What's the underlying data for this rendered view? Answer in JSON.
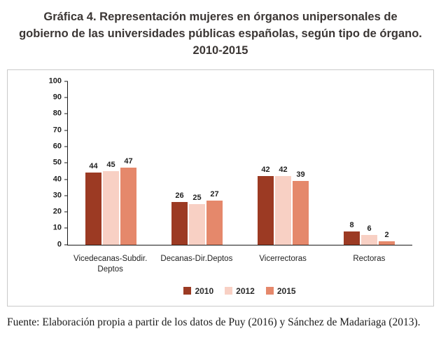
{
  "title": "Gráfica 4. Representación mujeres en órganos unipersonales de gobierno de las universidades públicas españolas, según tipo de órgano. 2010-2015",
  "source": "Fuente: Elaboración propia a partir de los datos de Puy (2016) y Sánchez de Madariaga (2013).",
  "chart_data": {
    "type": "bar",
    "title": "Gráfica 4. Representación mujeres en órganos unipersonales de gobierno de las universidades públicas españolas, según tipo de órgano. 2010-2015",
    "categories": [
      "Vicedecanas-Subdir. Deptos",
      "Decanas-Dir.Deptos",
      "Vicerrectoras",
      "Rectoras"
    ],
    "series": [
      {
        "name": "2010",
        "color": "#9c3a23",
        "values": [
          44,
          26,
          42,
          8
        ]
      },
      {
        "name": "2012",
        "color": "#f8d0c4",
        "values": [
          45,
          25,
          42,
          6
        ]
      },
      {
        "name": "2015",
        "color": "#e5886b",
        "values": [
          47,
          27,
          39,
          2
        ]
      }
    ],
    "xlabel": "",
    "ylabel": "",
    "ylim": [
      0,
      100
    ],
    "ytick_step": 10,
    "grid": false,
    "value_labels": true,
    "legend_position": "bottom"
  }
}
